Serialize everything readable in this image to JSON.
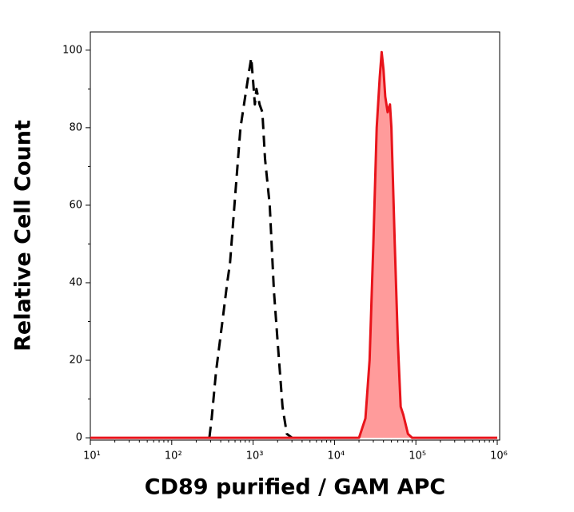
{
  "chart_data": {
    "type": "histogram-overlay",
    "x_label": "CD89 purified / GAM APC",
    "y_label": "Relative Cell Count",
    "xscale": "log",
    "xlim": [
      10,
      1070000
    ],
    "ylim": [
      -0.6,
      104.7
    ],
    "xticks": [
      {
        "value": 10,
        "label": "10¹"
      },
      {
        "value": 100,
        "label": "10²"
      },
      {
        "value": 1000,
        "label": "10³"
      },
      {
        "value": 10000,
        "label": "10⁴"
      },
      {
        "value": 100000,
        "label": "10⁵"
      },
      {
        "value": 1000000,
        "label": "10⁶"
      }
    ],
    "yticks": [
      0,
      20,
      40,
      60,
      80,
      100
    ],
    "series": [
      {
        "color": "#000000",
        "style": "dashed",
        "fill": null,
        "x": [
          290,
          310,
          350,
          420,
          480,
          520,
          600,
          700,
          800,
          900,
          950,
          1000,
          1050,
          1100,
          1200,
          1300,
          1400,
          1600,
          1800,
          2000,
          2300,
          2600,
          3000
        ],
        "values": [
          0,
          5,
          17,
          30,
          40,
          45,
          62,
          80,
          88,
          95,
          98,
          92,
          86,
          90,
          86,
          84,
          72,
          60,
          38,
          25,
          8,
          1,
          0
        ]
      },
      {
        "color": "#e8141b",
        "style": "solid",
        "fill": "#ff9b9b",
        "x": [
          10,
          20000,
          24000,
          27000,
          30000,
          33000,
          36000,
          38000,
          40000,
          42000,
          45000,
          48000,
          50000,
          55000,
          60000,
          65000,
          70000,
          80000,
          90000,
          1000000
        ],
        "values": [
          0,
          0,
          5,
          20,
          50,
          80,
          93,
          99.5,
          95,
          88,
          84,
          86,
          80,
          50,
          25,
          8,
          6,
          1,
          0,
          0
        ]
      }
    ]
  }
}
